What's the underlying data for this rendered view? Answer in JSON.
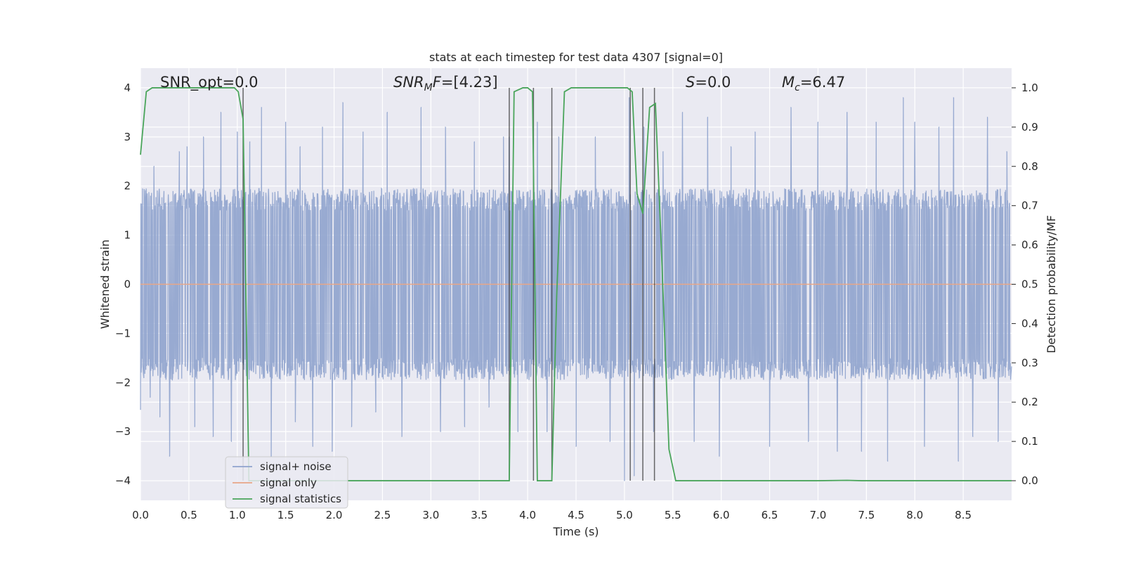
{
  "chart_data": {
    "type": "line",
    "title": "stats at each timestep for test data 4307 [signal=0]",
    "xlabel": "Time (s)",
    "ylabel_left": "Whitened strain",
    "ylabel_right": "Detection probability/MF",
    "xlim": [
      0.0,
      9.0
    ],
    "ylim_left": [
      -4.4,
      4.4
    ],
    "ylim_right": [
      -0.05,
      1.05
    ],
    "x_ticks": [
      "0.0",
      "0.5",
      "1.0",
      "1.5",
      "2.0",
      "2.5",
      "3.0",
      "3.5",
      "4.0",
      "4.5",
      "5.0",
      "5.5",
      "6.0",
      "6.5",
      "7.0",
      "7.5",
      "8.0",
      "8.5"
    ],
    "y_ticks_left": [
      "4",
      "3",
      "2",
      "1",
      "0",
      "−1",
      "−2",
      "−3",
      "−4"
    ],
    "y_ticks_right": [
      "1.0",
      "0.9",
      "0.8",
      "0.7",
      "0.6",
      "0.5",
      "0.4",
      "0.3",
      "0.2",
      "0.1",
      "0.0"
    ],
    "grid": true,
    "background": "#eaeaf2",
    "annotations": [
      {
        "text": "SNR_opt=0.0"
      },
      {
        "text": "SNR_MF=[4.23]",
        "prefix": "SNR",
        "sub": "M",
        "suffix": "F=[4.23]"
      },
      {
        "text": "S=0.0",
        "prefix": "S",
        "sub": "",
        "suffix": "=0.0"
      },
      {
        "text": "M_c=6.47",
        "prefix": "M",
        "sub": "c",
        "suffix": "=6.47"
      }
    ],
    "legend": {
      "position": "lower-left",
      "entries": [
        {
          "label": "signal+ noise",
          "color": "#8fa3cd"
        },
        {
          "label": "signal only",
          "color": "#e8a687"
        },
        {
          "label": "signal statistics",
          "color": "#4aa55b"
        }
      ]
    },
    "series": [
      {
        "name": "signal+ noise",
        "axis": "left",
        "color": "#8fa3cd",
        "kind": "noise",
        "typical_abs_min": 1.5,
        "peaks": [
          {
            "x": 0.0,
            "y": -2.55
          },
          {
            "x": 0.1,
            "y": -2.3
          },
          {
            "x": 0.14,
            "y": 2.4
          },
          {
            "x": 0.2,
            "y": -2.7
          },
          {
            "x": 0.3,
            "y": -3.5
          },
          {
            "x": 0.4,
            "y": 2.7
          },
          {
            "x": 0.48,
            "y": 2.8
          },
          {
            "x": 0.56,
            "y": -2.9
          },
          {
            "x": 0.65,
            "y": 3.0
          },
          {
            "x": 0.75,
            "y": -3.1
          },
          {
            "x": 0.83,
            "y": 3.5
          },
          {
            "x": 0.94,
            "y": -3.2
          },
          {
            "x": 1.0,
            "y": 3.1
          },
          {
            "x": 1.13,
            "y": 2.9
          },
          {
            "x": 1.25,
            "y": 3.6
          },
          {
            "x": 1.35,
            "y": -3.5
          },
          {
            "x": 1.5,
            "y": 3.3
          },
          {
            "x": 1.6,
            "y": -2.8
          },
          {
            "x": 1.65,
            "y": 2.8
          },
          {
            "x": 1.78,
            "y": -3.3
          },
          {
            "x": 1.88,
            "y": 3.2
          },
          {
            "x": 1.98,
            "y": -3.4
          },
          {
            "x": 2.09,
            "y": 3.7
          },
          {
            "x": 2.18,
            "y": -2.9
          },
          {
            "x": 2.3,
            "y": 3.1
          },
          {
            "x": 2.43,
            "y": -2.6
          },
          {
            "x": 2.55,
            "y": 3.5
          },
          {
            "x": 2.7,
            "y": -3.1
          },
          {
            "x": 2.9,
            "y": 3.6
          },
          {
            "x": 3.1,
            "y": -3.0
          },
          {
            "x": 3.15,
            "y": 3.2
          },
          {
            "x": 3.35,
            "y": -2.9
          },
          {
            "x": 3.45,
            "y": 2.9
          },
          {
            "x": 3.6,
            "y": -2.5
          },
          {
            "x": 3.75,
            "y": 3.0
          },
          {
            "x": 3.81,
            "y": 3.0
          },
          {
            "x": 3.9,
            "y": -3.0
          },
          {
            "x": 4.1,
            "y": 3.3
          },
          {
            "x": 4.2,
            "y": -3.0
          },
          {
            "x": 4.32,
            "y": 3.0
          },
          {
            "x": 4.5,
            "y": -3.3
          },
          {
            "x": 4.7,
            "y": 3.0
          },
          {
            "x": 4.85,
            "y": -3.2
          },
          {
            "x": 5.0,
            "y": -4.0
          },
          {
            "x": 5.05,
            "y": 3.8
          },
          {
            "x": 5.1,
            "y": -3.9
          },
          {
            "x": 5.2,
            "y": 3.2
          },
          {
            "x": 5.3,
            "y": -3.0
          },
          {
            "x": 5.4,
            "y": 2.7
          },
          {
            "x": 5.6,
            "y": 3.5
          },
          {
            "x": 5.72,
            "y": -3.2
          },
          {
            "x": 5.86,
            "y": 3.4
          },
          {
            "x": 5.98,
            "y": -3.5
          },
          {
            "x": 6.1,
            "y": 2.8
          },
          {
            "x": 6.35,
            "y": 3.1
          },
          {
            "x": 6.5,
            "y": -3.3
          },
          {
            "x": 6.72,
            "y": 3.6
          },
          {
            "x": 6.9,
            "y": -3.2
          },
          {
            "x": 7.0,
            "y": 3.3
          },
          {
            "x": 7.2,
            "y": -3.4
          },
          {
            "x": 7.3,
            "y": 3.5
          },
          {
            "x": 7.45,
            "y": -3.4
          },
          {
            "x": 7.6,
            "y": 3.3
          },
          {
            "x": 7.72,
            "y": -3.6
          },
          {
            "x": 7.88,
            "y": 3.8
          },
          {
            "x": 8.0,
            "y": 3.3
          },
          {
            "x": 8.1,
            "y": -3.3
          },
          {
            "x": 8.25,
            "y": 3.2
          },
          {
            "x": 8.4,
            "y": 3.8
          },
          {
            "x": 8.45,
            "y": -3.6
          },
          {
            "x": 8.6,
            "y": -3.1
          },
          {
            "x": 8.75,
            "y": 3.4
          },
          {
            "x": 8.86,
            "y": -3.2
          },
          {
            "x": 8.95,
            "y": 2.7
          }
        ]
      },
      {
        "name": "signal only",
        "axis": "left",
        "color": "#e8a687",
        "x": [
          0.0,
          9.0
        ],
        "y": [
          0.0,
          0.0
        ]
      },
      {
        "name": "signal statistics",
        "axis": "right",
        "color": "#4aa55b",
        "x": [
          0.0,
          0.06,
          0.12,
          0.5,
          0.97,
          1.01,
          1.06,
          1.12,
          1.2,
          2.0,
          3.0,
          3.81,
          3.86,
          3.95,
          4.0,
          4.05,
          4.1,
          4.2,
          4.25,
          4.3,
          4.38,
          4.45,
          4.6,
          5.03,
          5.08,
          5.13,
          5.19,
          5.26,
          5.32,
          5.38,
          5.46,
          5.53,
          5.58,
          6.0,
          7.0,
          7.3,
          7.45,
          8.0,
          9.0
        ],
        "y": [
          0.83,
          0.99,
          1.0,
          1.0,
          1.0,
          0.99,
          0.92,
          0.0,
          0.0,
          0.0,
          0.0,
          0.0,
          0.99,
          1.0,
          1.0,
          0.99,
          0.0,
          0.0,
          0.0,
          0.47,
          0.99,
          1.0,
          1.0,
          1.0,
          0.99,
          0.73,
          0.68,
          0.95,
          0.96,
          0.6,
          0.08,
          0.0,
          0.0,
          0.0,
          0.0,
          0.001,
          0.0,
          0.0,
          0.0
        ]
      }
    ],
    "vertical_markers": [
      1.06,
      3.81,
      4.06,
      4.25,
      5.06,
      5.19,
      5.31
    ]
  }
}
